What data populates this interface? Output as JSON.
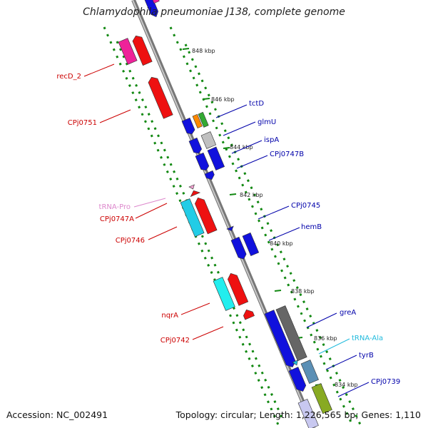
{
  "title": "Chlamydophila pneumoniae J138, complete genome",
  "footer": {
    "accession": "Accession: NC_002491",
    "topology": "Topology: circular; Length: 1,226,565 bp; Genes: 1,110"
  },
  "scale_labels": [
    "848 kbp",
    "846 kbp",
    "844 kbp",
    "842 kbp",
    "840 kbp",
    "838 kbp",
    "836 kbp",
    "834 kbp"
  ],
  "gene_labels": {
    "left": [
      "recD_2",
      "CPj0751",
      "tRNA-Pro",
      "CPj0747A",
      "CPj0746",
      "nqrA",
      "CPj0742"
    ],
    "right": [
      "tctD",
      "glmU",
      "ispA",
      "CPj0747B",
      "CPj0745",
      "hemB",
      "greA",
      "tRNA-Ala",
      "tyrB",
      "CPj0739"
    ]
  },
  "colors": {
    "red": "#ee1111",
    "magenta": "#ee2299",
    "pink": "#f0a0d0",
    "cyan": "#22cce6",
    "aqua": "#22eeee",
    "blue": "#1111dd",
    "orange": "#ff8800",
    "green": "#33aa33",
    "gray": "#c0c0c0",
    "darkgray": "#666666",
    "olive": "#88aa22",
    "steel": "#5b8fb5",
    "tick_green": "#118811",
    "label_red": "#cc0000",
    "label_blue": "#0000aa",
    "label_pink": "#dd88cc",
    "label_cyan": "#22bbdd"
  }
}
